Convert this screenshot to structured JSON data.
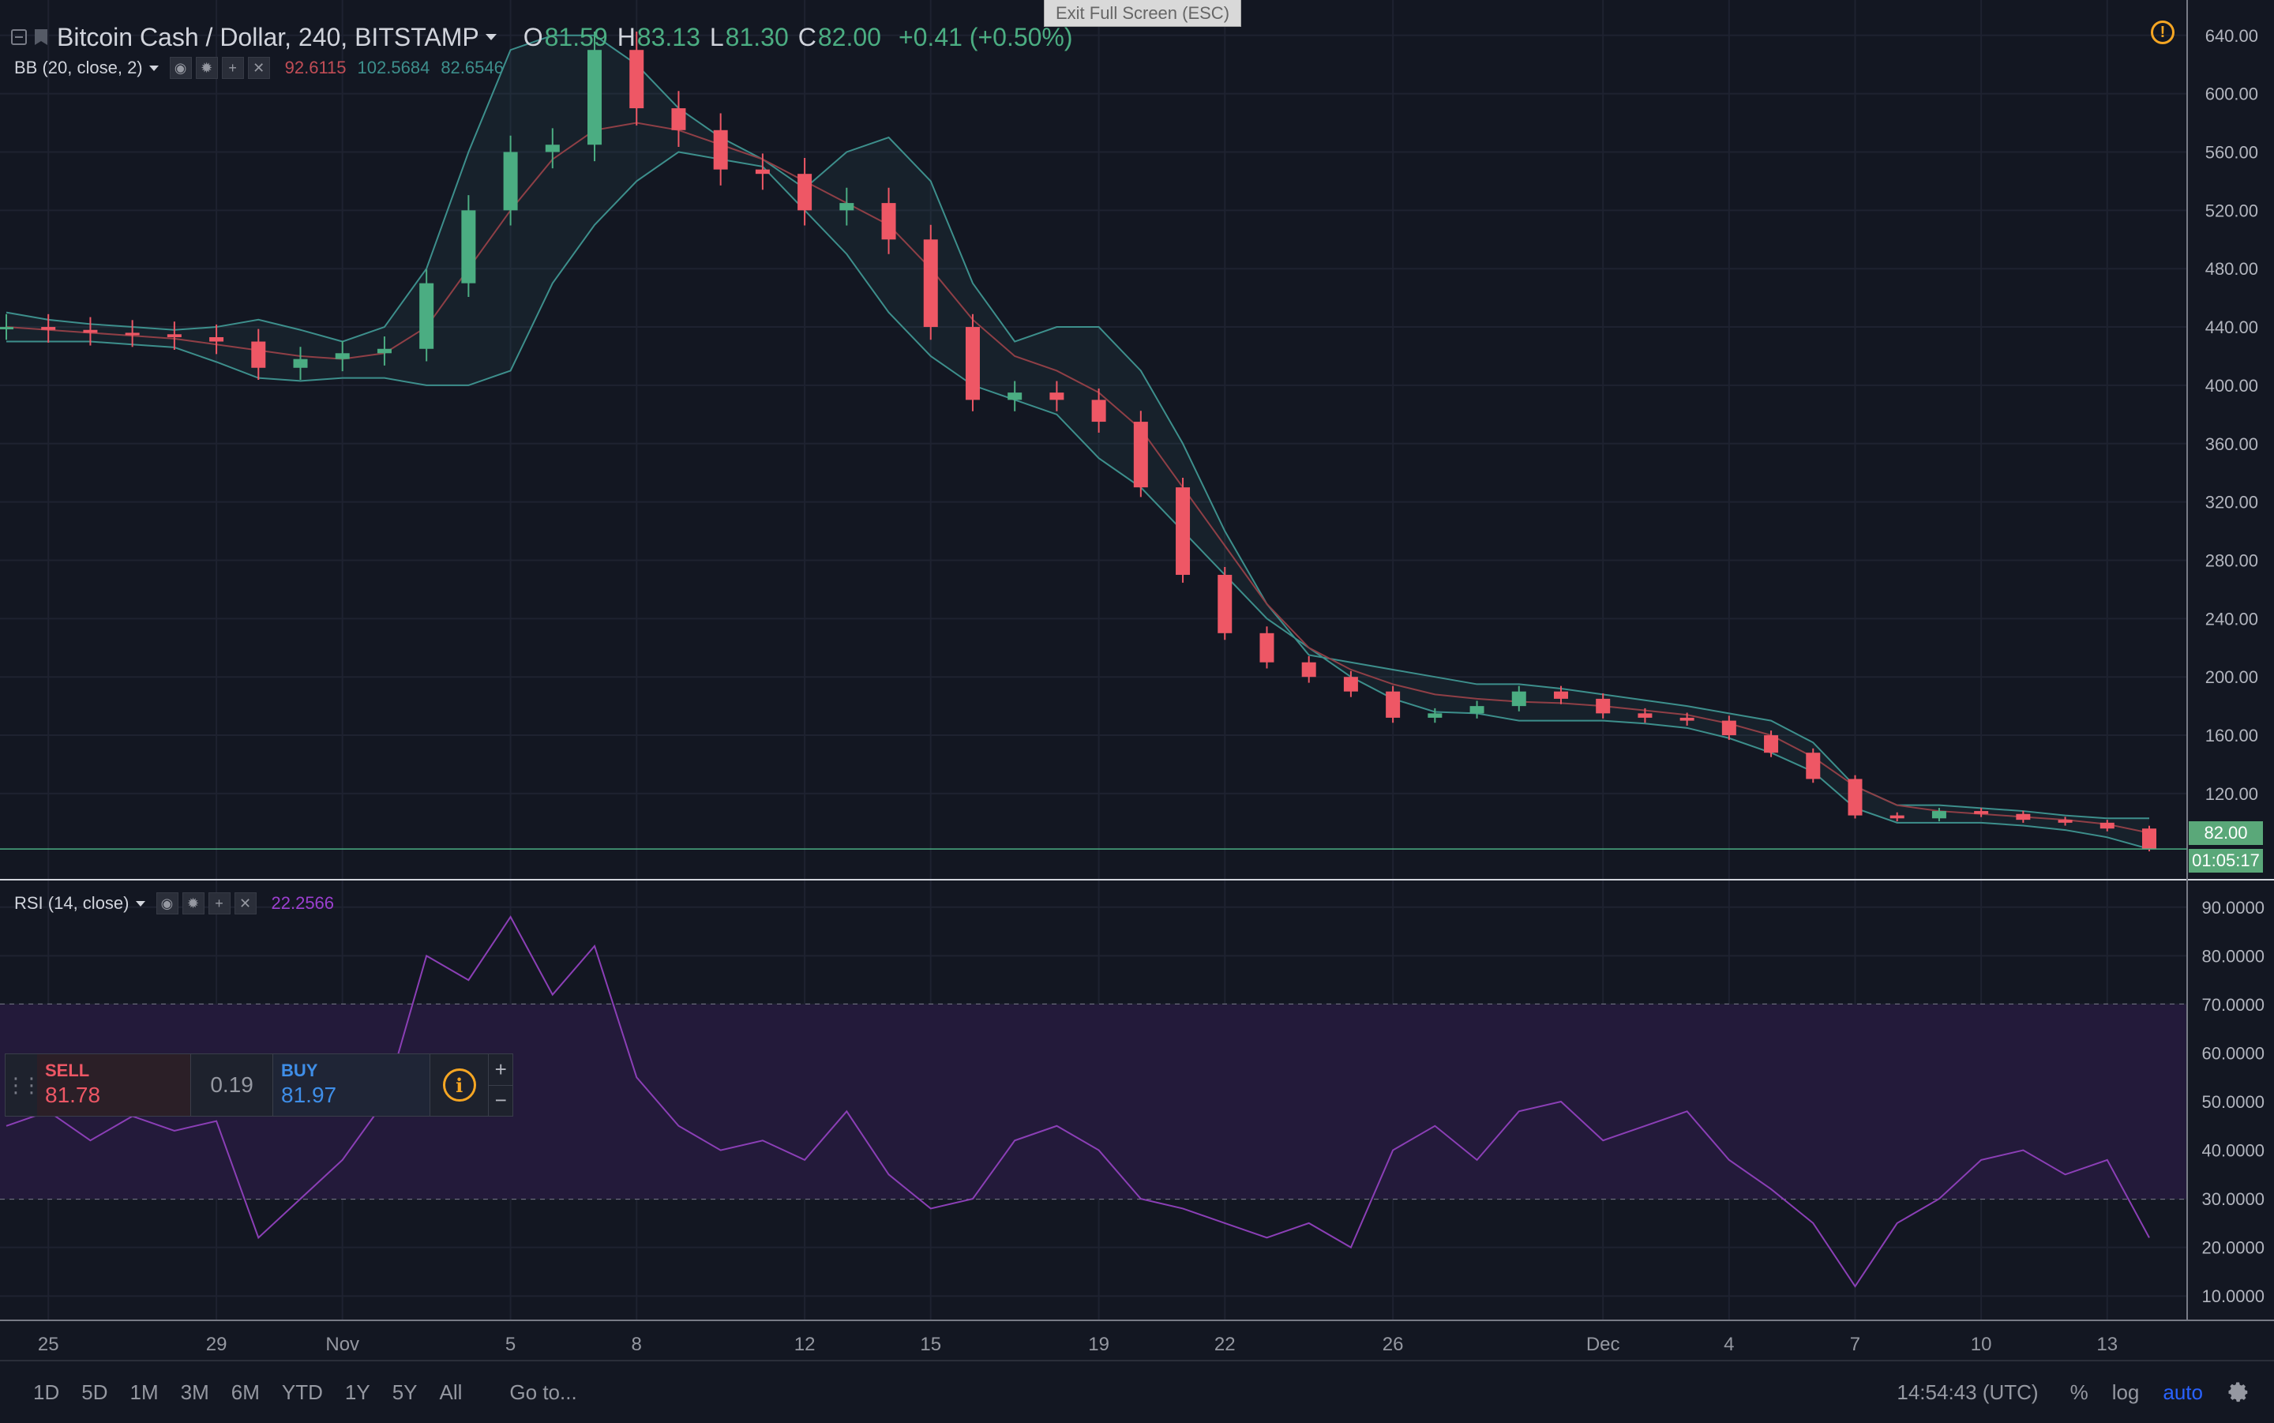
{
  "symbol_bar": {
    "title": "Bitcoin Cash / Dollar, 240, BITSTAMP",
    "o_label": "O",
    "o_value": "81.59",
    "h_label": "H",
    "h_value": "83.13",
    "l_label": "L",
    "l_value": "81.30",
    "c_label": "C",
    "c_value": "82.00",
    "change": "+0.41 (+0.50%)"
  },
  "exit_fullscreen": "Exit Full Screen (ESC)",
  "bb_indicator": {
    "name": "BB (20, close, 2)",
    "basis": "92.6115",
    "upper": "102.5684",
    "lower": "82.6546"
  },
  "rsi_indicator": {
    "name": "RSI (14, close)",
    "value": "22.2566"
  },
  "last_price_tag": "82.00",
  "countdown_tag": "01:05:17",
  "trade_panel": {
    "sell_label": "SELL",
    "sell_price": "81.78",
    "spread": "0.19",
    "buy_label": "BUY",
    "buy_price": "81.97",
    "plus": "+",
    "minus": "−"
  },
  "bottom_bar": {
    "ranges": [
      "1D",
      "5D",
      "1M",
      "3M",
      "6M",
      "YTD",
      "1Y",
      "5Y",
      "All"
    ],
    "goto": "Go to...",
    "clock": "14:54:43 (UTC)",
    "percent": "%",
    "log": "log",
    "auto": "auto"
  },
  "colors": {
    "background": "#131722",
    "up": "#4bad82",
    "down": "#ee5765",
    "bb_band": "#3d8f8c",
    "bb_basis": "#8f3f46",
    "rsi_line": "#8b3fb6",
    "rsi_zone": "#231a3a",
    "accent_orange": "#f6a623",
    "accent_blue": "#2962ff"
  },
  "icons": [
    "square-icon",
    "flag-icon",
    "caret-icon",
    "eye-icon",
    "gear-icon",
    "plus-icon",
    "close-icon",
    "warning-icon",
    "drag-handle-icon",
    "info-icon"
  ],
  "chart_data": [
    {
      "type": "candlestick",
      "title": "Bitcoin Cash / Dollar, 240, BITSTAMP",
      "x_tick_labels": [
        "25",
        "29",
        "Nov",
        "5",
        "8",
        "12",
        "15",
        "19",
        "22",
        "26",
        "Dec",
        "4",
        "7",
        "10",
        "13"
      ],
      "y_tick_labels": [
        "640.00",
        "600.00",
        "560.00",
        "520.00",
        "480.00",
        "440.00",
        "400.00",
        "360.00",
        "320.00",
        "280.00",
        "240.00",
        "200.00",
        "160.00",
        "120.00"
      ],
      "ylim": [
        62,
        648
      ],
      "x": [
        "Oct 24",
        "Oct 25",
        "Oct 26",
        "Oct 27",
        "Oct 28",
        "Oct 29",
        "Oct 30",
        "Oct 31",
        "Nov 1",
        "Nov 2",
        "Nov 3",
        "Nov 4",
        "Nov 5",
        "Nov 6",
        "Nov 7",
        "Nov 8",
        "Nov 9",
        "Nov 10",
        "Nov 11",
        "Nov 12",
        "Nov 13",
        "Nov 14",
        "Nov 15",
        "Nov 16",
        "Nov 17",
        "Nov 18",
        "Nov 19",
        "Nov 20",
        "Nov 21",
        "Nov 22",
        "Nov 23",
        "Nov 24",
        "Nov 25",
        "Nov 26",
        "Nov 27",
        "Nov 28",
        "Nov 29",
        "Nov 30",
        "Dec 1",
        "Dec 2",
        "Dec 3",
        "Dec 4",
        "Dec 5",
        "Dec 6",
        "Dec 7",
        "Dec 8",
        "Dec 9",
        "Dec 10",
        "Dec 11",
        "Dec 12",
        "Dec 13",
        "Dec 14"
      ],
      "close": [
        440,
        438,
        436,
        435,
        433,
        430,
        412,
        418,
        422,
        425,
        470,
        520,
        560,
        565,
        630,
        590,
        575,
        548,
        545,
        520,
        525,
        500,
        440,
        390,
        395,
        390,
        375,
        330,
        270,
        230,
        210,
        200,
        190,
        172,
        175,
        180,
        190,
        185,
        175,
        172,
        170,
        160,
        148,
        130,
        105,
        103,
        108,
        106,
        102,
        100,
        96,
        82
      ],
      "bb_upper": [
        450,
        445,
        442,
        440,
        438,
        440,
        445,
        438,
        430,
        440,
        480,
        560,
        630,
        640,
        640,
        620,
        590,
        570,
        555,
        535,
        560,
        570,
        540,
        470,
        430,
        440,
        440,
        410,
        360,
        300,
        250,
        215,
        210,
        205,
        200,
        195,
        195,
        192,
        188,
        184,
        180,
        175,
        170,
        155,
        125,
        112,
        112,
        110,
        108,
        105,
        103,
        103
      ],
      "bb_basis": [
        440,
        438,
        436,
        434,
        432,
        428,
        424,
        420,
        418,
        422,
        440,
        480,
        520,
        555,
        575,
        580,
        575,
        565,
        555,
        540,
        525,
        510,
        480,
        445,
        420,
        410,
        395,
        370,
        330,
        290,
        250,
        220,
        205,
        195,
        188,
        185,
        183,
        182,
        180,
        177,
        174,
        168,
        160,
        145,
        125,
        112,
        108,
        106,
        104,
        102,
        99,
        93
      ],
      "bb_lower": [
        430,
        430,
        430,
        428,
        426,
        416,
        405,
        403,
        405,
        405,
        400,
        400,
        410,
        470,
        510,
        540,
        560,
        555,
        550,
        520,
        490,
        450,
        420,
        400,
        390,
        380,
        350,
        330,
        300,
        270,
        240,
        220,
        200,
        185,
        176,
        175,
        170,
        170,
        170,
        168,
        165,
        158,
        148,
        135,
        110,
        100,
        100,
        100,
        98,
        95,
        90,
        82
      ]
    },
    {
      "type": "line",
      "title": "RSI (14, close)",
      "y_tick_labels": [
        "90.0000",
        "80.0000",
        "70.0000",
        "60.0000",
        "50.0000",
        "40.0000",
        "30.0000",
        "20.0000",
        "10.0000"
      ],
      "ylim": [
        5,
        95
      ],
      "bands": [
        30,
        70
      ],
      "x": [
        "Oct 24",
        "Oct 25",
        "Oct 26",
        "Oct 27",
        "Oct 28",
        "Oct 29",
        "Oct 30",
        "Oct 31",
        "Nov 1",
        "Nov 2",
        "Nov 3",
        "Nov 4",
        "Nov 5",
        "Nov 6",
        "Nov 7",
        "Nov 8",
        "Nov 9",
        "Nov 10",
        "Nov 11",
        "Nov 12",
        "Nov 13",
        "Nov 14",
        "Nov 15",
        "Nov 16",
        "Nov 17",
        "Nov 18",
        "Nov 19",
        "Nov 20",
        "Nov 21",
        "Nov 22",
        "Nov 23",
        "Nov 24",
        "Nov 25",
        "Nov 26",
        "Nov 27",
        "Nov 28",
        "Nov 29",
        "Nov 30",
        "Dec 1",
        "Dec 2",
        "Dec 3",
        "Dec 4",
        "Dec 5",
        "Dec 6",
        "Dec 7",
        "Dec 8",
        "Dec 9",
        "Dec 10",
        "Dec 11",
        "Dec 12",
        "Dec 13",
        "Dec 14"
      ],
      "values": [
        45,
        48,
        42,
        47,
        44,
        46,
        22,
        30,
        38,
        50,
        80,
        75,
        88,
        72,
        82,
        55,
        45,
        40,
        42,
        38,
        48,
        35,
        28,
        30,
        42,
        45,
        40,
        30,
        28,
        25,
        22,
        25,
        20,
        40,
        45,
        38,
        48,
        50,
        42,
        45,
        48,
        38,
        32,
        25,
        12,
        25,
        30,
        38,
        40,
        35,
        38,
        22
      ]
    }
  ]
}
